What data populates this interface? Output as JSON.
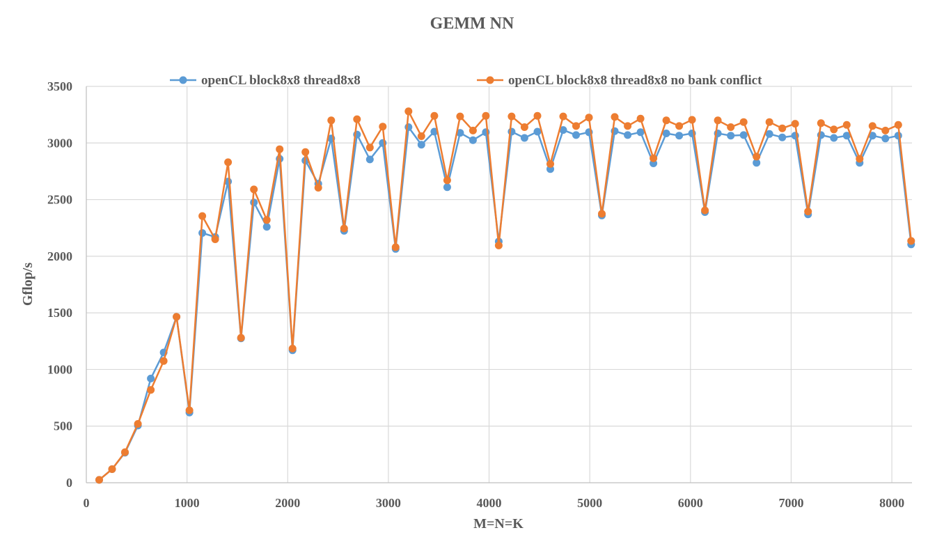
{
  "chart_data": {
    "type": "line",
    "title": "GEMM NN",
    "xlabel": "M=N=K",
    "ylabel": "Gflop/s",
    "xlim": [
      0,
      8200
    ],
    "ylim": [
      0,
      3500
    ],
    "x_ticks": [
      0,
      1000,
      2000,
      3000,
      4000,
      5000,
      6000,
      7000,
      8000
    ],
    "y_ticks": [
      0,
      500,
      1000,
      1500,
      2000,
      2500,
      3000,
      3500
    ],
    "grid": true,
    "legend_position": "top",
    "x": [
      128,
      256,
      384,
      512,
      640,
      768,
      896,
      1024,
      1152,
      1280,
      1408,
      1536,
      1664,
      1792,
      1920,
      2048,
      2176,
      2304,
      2432,
      2560,
      2688,
      2816,
      2944,
      3072,
      3200,
      3328,
      3456,
      3584,
      3712,
      3840,
      3968,
      4096,
      4224,
      4352,
      4480,
      4608,
      4736,
      4864,
      4992,
      5120,
      5248,
      5376,
      5504,
      5632,
      5760,
      5888,
      6016,
      6144,
      6272,
      6400,
      6528,
      6656,
      6784,
      6912,
      7040,
      7168,
      7296,
      7424,
      7552,
      7680,
      7808,
      7936,
      8064,
      8192
    ],
    "series": [
      {
        "name": "openCL block8x8 thread8x8",
        "color": "#5B9BD5",
        "values": [
          25,
          120,
          265,
          505,
          920,
          1150,
          1465,
          620,
          2205,
          2170,
          2660,
          1275,
          2475,
          2260,
          2860,
          1170,
          2845,
          2640,
          3040,
          2225,
          3075,
          2855,
          3000,
          2065,
          3140,
          2985,
          3100,
          2610,
          3090,
          3025,
          3095,
          2130,
          3100,
          3045,
          3100,
          2770,
          3115,
          3070,
          3095,
          2360,
          3105,
          3070,
          3095,
          2820,
          3085,
          3065,
          3085,
          2390,
          3085,
          3065,
          3070,
          2825,
          3080,
          3050,
          3065,
          2370,
          3070,
          3045,
          3065,
          2825,
          3065,
          3040,
          3065,
          2105
        ]
      },
      {
        "name": "openCL block8x8 thread8x8 no bank conflict",
        "color": "#ED7D31",
        "values": [
          25,
          120,
          270,
          520,
          820,
          1075,
          1465,
          640,
          2355,
          2150,
          2830,
          1280,
          2590,
          2320,
          2945,
          1185,
          2920,
          2605,
          3200,
          2245,
          3210,
          2960,
          3145,
          2080,
          3280,
          3060,
          3240,
          2670,
          3235,
          3110,
          3240,
          2095,
          3235,
          3140,
          3240,
          2815,
          3235,
          3150,
          3225,
          2375,
          3230,
          3150,
          3215,
          2865,
          3200,
          3150,
          3205,
          2405,
          3200,
          3140,
          3185,
          2880,
          3185,
          3130,
          3170,
          2395,
          3175,
          3120,
          3160,
          2860,
          3150,
          3110,
          3160,
          2135
        ]
      }
    ]
  }
}
